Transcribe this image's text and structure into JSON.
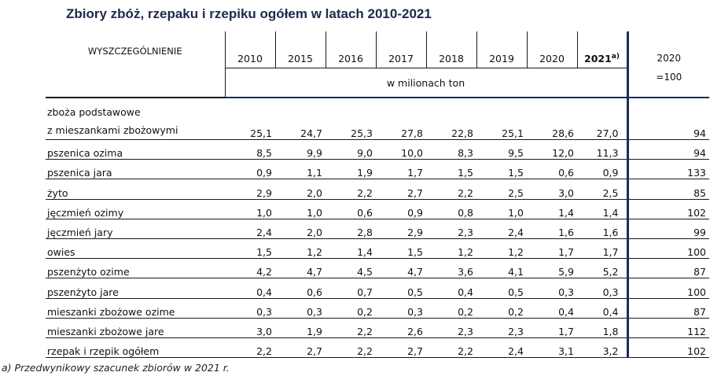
{
  "title": "Zbiory zbóż, rzepaku i rzepiku ogółem w latach 2010-2021",
  "header": {
    "label_col": "WYSZCZEGÓLNIENIE",
    "years": [
      "2010",
      "2015",
      "2016",
      "2017",
      "2018",
      "2019",
      "2020"
    ],
    "year_2021": "2021",
    "year_2021_note": "a)",
    "index_line1": "2020",
    "index_line2": "=100",
    "unit": "w milionach ton"
  },
  "rows": [
    {
      "label_line1": "zboża podstawowe",
      "label_line2": "z mieszankami zbożowymi",
      "values": [
        "25,1",
        "24,7",
        "25,3",
        "27,8",
        "22,8",
        "25,1",
        "28,6",
        "27,0"
      ],
      "index": "94"
    },
    {
      "label": "pszenica ozima",
      "values": [
        "8,5",
        "9,9",
        "9,0",
        "10,0",
        "8,3",
        "9,5",
        "12,0",
        "11,3"
      ],
      "index": "94"
    },
    {
      "label": "pszenica jara",
      "values": [
        "0,9",
        "1,1",
        "1,9",
        "1,7",
        "1,5",
        "1,5",
        "0,6",
        "0,9"
      ],
      "index": "133"
    },
    {
      "label": "żyto",
      "values": [
        "2,9",
        "2,0",
        "2,2",
        "2,7",
        "2,2",
        "2,5",
        "3,0",
        "2,5"
      ],
      "index": "85"
    },
    {
      "label": "jęczmień ozimy",
      "values": [
        "1,0",
        "1,0",
        "0,6",
        "0,9",
        "0,8",
        "1,0",
        "1,4",
        "1,4"
      ],
      "index": "102"
    },
    {
      "label": "jęczmień jary",
      "values": [
        "2,4",
        "2,0",
        "2,8",
        "2,9",
        "2,3",
        "2,4",
        "1,6",
        "1,6"
      ],
      "index": "99"
    },
    {
      "label": "owies",
      "values": [
        "1,5",
        "1,2",
        "1,4",
        "1,5",
        "1,2",
        "1,2",
        "1,7",
        "1,7"
      ],
      "index": "100"
    },
    {
      "label": "pszenżyto ozime",
      "values": [
        "4,2",
        "4,7",
        "4,5",
        "4,7",
        "3,6",
        "4,1",
        "5,9",
        "5,2"
      ],
      "index": "87"
    },
    {
      "label": "pszenżyto jare",
      "values": [
        "0,4",
        "0,6",
        "0,7",
        "0,5",
        "0,4",
        "0,5",
        "0,3",
        "0,3"
      ],
      "index": "100"
    },
    {
      "label": "mieszanki zbożowe ozime",
      "values": [
        "0,3",
        "0,3",
        "0,2",
        "0,3",
        "0,2",
        "0,2",
        "0,4",
        "0,4"
      ],
      "index": "87"
    },
    {
      "label": "mieszanki zbożowe jare",
      "values": [
        "3,0",
        "1,9",
        "2,2",
        "2,6",
        "2,3",
        "2,3",
        "1,7",
        "1,8"
      ],
      "index": "112"
    },
    {
      "label": "rzepak i rzepik ogółem",
      "values": [
        "2,2",
        "2,7",
        "2,2",
        "2,7",
        "2,2",
        "2,4",
        "3,1",
        "3,2"
      ],
      "index": "102"
    }
  ],
  "footnote": "a) Przedwynikowy szacunek zbiorów w 2021 r."
}
